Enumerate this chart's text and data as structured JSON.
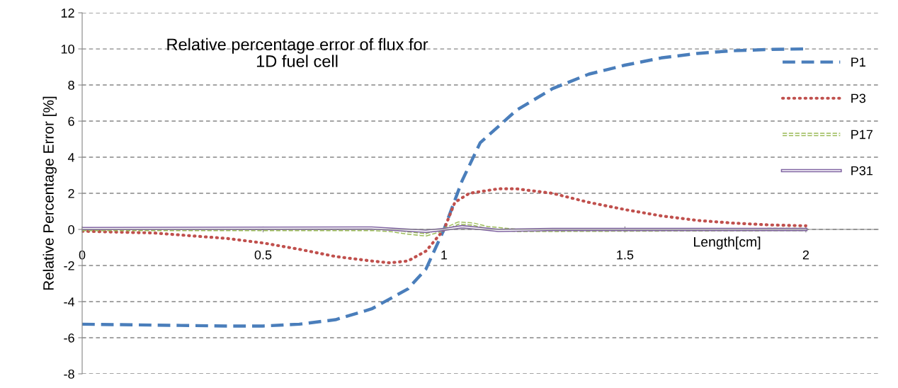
{
  "chart_data": {
    "type": "line",
    "title": "Relative percentage error of flux for\n1D fuel cell",
    "xlabel": "Length[cm]",
    "ylabel": "Relative Percentage Error [%]",
    "xlim": [
      0,
      2.2
    ],
    "xticks": [
      0,
      0.5,
      1,
      1.5,
      2
    ],
    "ylim": [
      -8,
      12
    ],
    "yticks": [
      -8,
      -6,
      -4,
      -2,
      0,
      2,
      4,
      6,
      8,
      10,
      12
    ],
    "grid": "y",
    "legend": "right",
    "series": [
      {
        "name": "P1",
        "color": "#4a7ebb",
        "line_style": "dashed",
        "x": [
          0,
          0.2,
          0.4,
          0.5,
          0.6,
          0.7,
          0.8,
          0.9,
          0.95,
          1.0,
          1.05,
          1.1,
          1.2,
          1.3,
          1.4,
          1.5,
          1.6,
          1.7,
          1.8,
          1.9,
          2.0
        ],
        "values": [
          -5.25,
          -5.3,
          -5.35,
          -5.35,
          -5.25,
          -5.0,
          -4.4,
          -3.3,
          -2.2,
          0,
          2.7,
          4.8,
          6.6,
          7.8,
          8.6,
          9.1,
          9.5,
          9.75,
          9.9,
          9.97,
          10.0
        ]
      },
      {
        "name": "P3",
        "color": "#c0504d",
        "line_style": "dotted",
        "x": [
          0,
          0.2,
          0.4,
          0.5,
          0.6,
          0.7,
          0.8,
          0.85,
          0.9,
          0.95,
          1.0,
          1.03,
          1.07,
          1.15,
          1.2,
          1.3,
          1.4,
          1.5,
          1.6,
          1.7,
          1.8,
          1.9,
          2.0
        ],
        "values": [
          -0.1,
          -0.2,
          -0.5,
          -0.75,
          -1.1,
          -1.5,
          -1.75,
          -1.85,
          -1.75,
          -1.2,
          0,
          1.5,
          2.0,
          2.25,
          2.25,
          2.0,
          1.5,
          1.1,
          0.75,
          0.5,
          0.35,
          0.25,
          0.2
        ]
      },
      {
        "name": "P17",
        "color": "#9bbb59",
        "line_style": "dashed",
        "x": [
          0,
          0.8,
          0.85,
          0.9,
          0.95,
          1.0,
          1.04,
          1.08,
          1.12,
          1.2,
          1.3,
          2.0
        ],
        "values": [
          0,
          0,
          -0.05,
          -0.2,
          -0.3,
          0,
          0.35,
          0.3,
          0.1,
          -0.05,
          -0.05,
          0
        ]
      },
      {
        "name": "P31",
        "color": "#8064a2",
        "line_style": "solid",
        "x": [
          0,
          0.8,
          0.95,
          1.0,
          1.05,
          1.1,
          1.15,
          1.3,
          2.0
        ],
        "values": [
          0.05,
          0.08,
          -0.1,
          0,
          0.15,
          0.05,
          -0.05,
          0,
          0
        ]
      }
    ]
  }
}
